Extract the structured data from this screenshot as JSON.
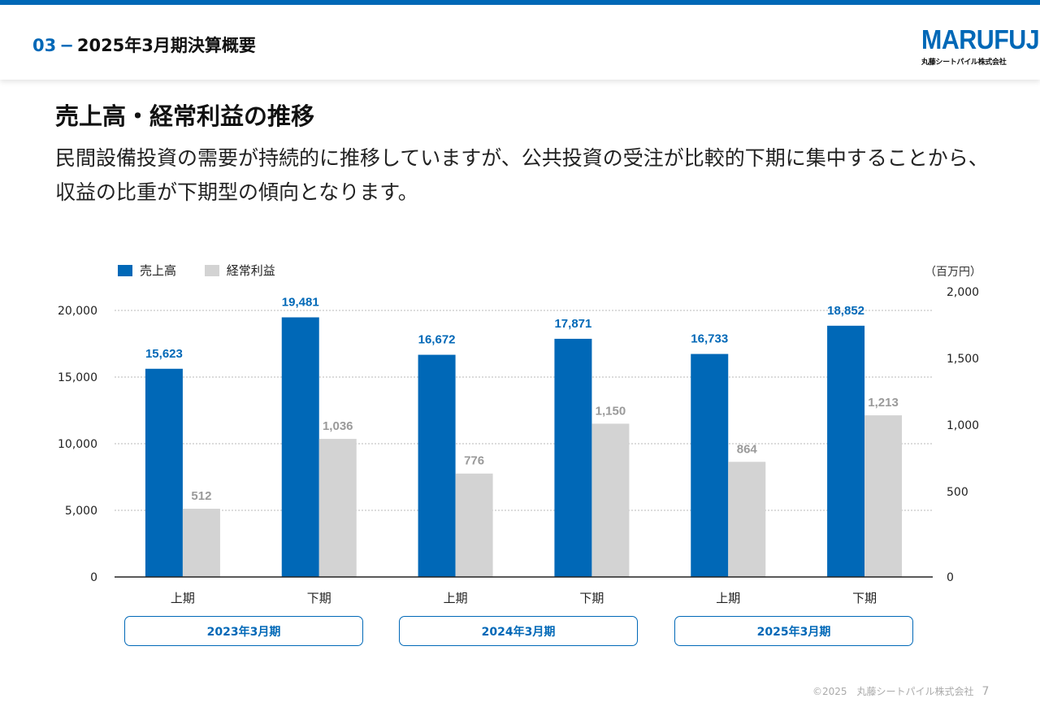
{
  "header": {
    "section_number": "03",
    "section_dash": "−",
    "section_title": "2025年3月期決算概要",
    "logo_word": "MARUFUJI",
    "logo_sub": "丸藤シートパイル株式会社"
  },
  "slide": {
    "heading": "売上高・経常利益の推移",
    "description": "民間設備投資の需要が持続的に推移していますが、公共投資の受注が比較的下期に集中することから、収益の比重が下期型の傾向となります。",
    "unit": "（百万円）"
  },
  "colors": {
    "accent": "#0068b7",
    "sales": "#0068b7",
    "profit": "#d3d3d3",
    "profit_label": "#9a9a9a"
  },
  "chart_data": {
    "type": "bar",
    "legend_position": "top-left",
    "categories": [
      "上期",
      "下期",
      "上期",
      "下期",
      "上期",
      "下期"
    ],
    "groups": [
      "2023年3月期",
      "2024年3月期",
      "2025年3月期"
    ],
    "series": [
      {
        "name": "売上高",
        "axis": "left",
        "values": [
          15623,
          19481,
          16672,
          17871,
          16733,
          18852
        ],
        "labels": [
          "15,623",
          "19,481",
          "16,672",
          "17,871",
          "16,733",
          "18,852"
        ]
      },
      {
        "name": "経常利益",
        "axis": "right",
        "values": [
          512,
          1036,
          776,
          1150,
          864,
          1213
        ],
        "labels": [
          "512",
          "1,036",
          "776",
          "1,150",
          "864",
          "1,213"
        ]
      }
    ],
    "y_left": {
      "min": 0,
      "max": 20000,
      "ticks": [
        "0",
        "5,000",
        "10,000",
        "15,000",
        "20,000"
      ]
    },
    "y_right": {
      "min": 0,
      "max": 2000,
      "ticks": [
        "0",
        "500",
        "1,000",
        "1,500",
        "2,000"
      ]
    },
    "grid": true
  },
  "footer": {
    "copyright": "©2025　丸藤シートパイル株式会社",
    "page": "7"
  }
}
